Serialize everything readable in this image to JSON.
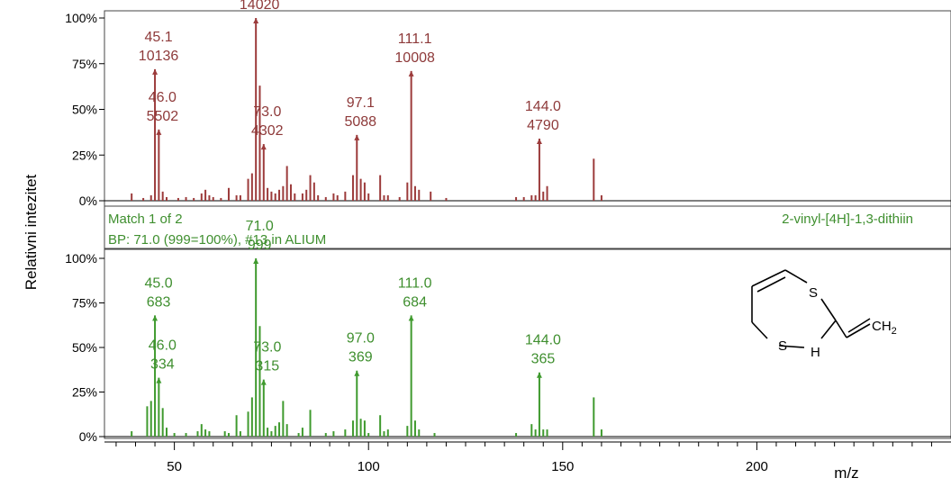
{
  "colors": {
    "library": "#9c3b3b",
    "library_label": "#8e3a3a",
    "match": "#3f9a2e",
    "match_label": "#3f8f2f",
    "axis": "#000000"
  },
  "y_axis_label": "Relativni intezitet",
  "x_axis_label": "m/z",
  "match_bar": {
    "match_text": "Match 1 of 2",
    "bp_text": "BP: 71.0 (999=100%),  #13 in ALIUM",
    "compound_name": "2-vinyl-[4H]-1,3-dithiin"
  },
  "structure": {
    "atom_s_top": "S",
    "atom_s_bottom": "S",
    "atom_h": "H",
    "group_ch2": "CH",
    "group_ch2_sub": "2"
  },
  "chart_data": [
    {
      "type": "bar",
      "name": "sample spectrum",
      "xlim": [
        32,
        250
      ],
      "ylim": [
        0,
        100
      ],
      "y_ticks": [
        "0%",
        "25%",
        "50%",
        "75%",
        "100%"
      ],
      "x_ticks": [],
      "peaks": [
        {
          "mz": 39,
          "rel": 4
        },
        {
          "mz": 42,
          "rel": 1.5
        },
        {
          "mz": 44,
          "rel": 3
        },
        {
          "mz": 45,
          "rel": 72
        },
        {
          "mz": 46,
          "rel": 39
        },
        {
          "mz": 47,
          "rel": 5
        },
        {
          "mz": 48,
          "rel": 2
        },
        {
          "mz": 51,
          "rel": 1.5
        },
        {
          "mz": 53,
          "rel": 2
        },
        {
          "mz": 55,
          "rel": 1.5
        },
        {
          "mz": 57,
          "rel": 4
        },
        {
          "mz": 58,
          "rel": 6
        },
        {
          "mz": 59,
          "rel": 3
        },
        {
          "mz": 60,
          "rel": 2
        },
        {
          "mz": 62,
          "rel": 1.5
        },
        {
          "mz": 64,
          "rel": 7
        },
        {
          "mz": 66,
          "rel": 3
        },
        {
          "mz": 67,
          "rel": 3
        },
        {
          "mz": 69,
          "rel": 12
        },
        {
          "mz": 70,
          "rel": 15
        },
        {
          "mz": 71,
          "rel": 100
        },
        {
          "mz": 72,
          "rel": 63
        },
        {
          "mz": 73,
          "rel": 31
        },
        {
          "mz": 74,
          "rel": 7
        },
        {
          "mz": 75,
          "rel": 5
        },
        {
          "mz": 76,
          "rel": 4
        },
        {
          "mz": 77,
          "rel": 6
        },
        {
          "mz": 78,
          "rel": 8
        },
        {
          "mz": 79,
          "rel": 19
        },
        {
          "mz": 80,
          "rel": 9
        },
        {
          "mz": 81,
          "rel": 4
        },
        {
          "mz": 83,
          "rel": 4
        },
        {
          "mz": 84,
          "rel": 6
        },
        {
          "mz": 85,
          "rel": 14
        },
        {
          "mz": 86,
          "rel": 10
        },
        {
          "mz": 87,
          "rel": 3
        },
        {
          "mz": 89,
          "rel": 2
        },
        {
          "mz": 91,
          "rel": 4
        },
        {
          "mz": 92,
          "rel": 3
        },
        {
          "mz": 94,
          "rel": 5
        },
        {
          "mz": 96,
          "rel": 14
        },
        {
          "mz": 97,
          "rel": 36
        },
        {
          "mz": 98,
          "rel": 12
        },
        {
          "mz": 99,
          "rel": 10
        },
        {
          "mz": 100,
          "rel": 4
        },
        {
          "mz": 103,
          "rel": 14
        },
        {
          "mz": 104,
          "rel": 3
        },
        {
          "mz": 105,
          "rel": 3
        },
        {
          "mz": 108,
          "rel": 2
        },
        {
          "mz": 110,
          "rel": 10
        },
        {
          "mz": 111,
          "rel": 71
        },
        {
          "mz": 112,
          "rel": 8
        },
        {
          "mz": 113,
          "rel": 6
        },
        {
          "mz": 116,
          "rel": 5
        },
        {
          "mz": 120,
          "rel": 1.5
        },
        {
          "mz": 138,
          "rel": 2
        },
        {
          "mz": 140,
          "rel": 2
        },
        {
          "mz": 142,
          "rel": 3
        },
        {
          "mz": 143,
          "rel": 3
        },
        {
          "mz": 144,
          "rel": 34
        },
        {
          "mz": 145,
          "rel": 5
        },
        {
          "mz": 146,
          "rel": 8
        },
        {
          "mz": 158,
          "rel": 23
        },
        {
          "mz": 160,
          "rel": 3
        }
      ],
      "annotations": [
        {
          "mz": 45,
          "rel": 72,
          "label": "45.1",
          "intensity": "10136"
        },
        {
          "mz": 46,
          "rel": 39,
          "label": "46.0",
          "intensity": "5502"
        },
        {
          "mz": 71,
          "rel": 100,
          "label": "71.2",
          "intensity": "14020"
        },
        {
          "mz": 73,
          "rel": 31,
          "label": "73.0",
          "intensity": "4302"
        },
        {
          "mz": 97,
          "rel": 36,
          "label": "97.1",
          "intensity": "5088"
        },
        {
          "mz": 111,
          "rel": 71,
          "label": "111.1",
          "intensity": "10008"
        },
        {
          "mz": 144,
          "rel": 34,
          "label": "144.0",
          "intensity": "4790"
        }
      ]
    },
    {
      "type": "bar",
      "name": "library spectrum",
      "xlim": [
        32,
        250
      ],
      "ylim": [
        0,
        100
      ],
      "y_ticks": [
        "0%",
        "25%",
        "50%",
        "75%",
        "100%"
      ],
      "x_ticks": [
        "50",
        "100",
        "150",
        "200"
      ],
      "x_tick_values": [
        50,
        100,
        150,
        200
      ],
      "peaks": [
        {
          "mz": 39,
          "rel": 3
        },
        {
          "mz": 43,
          "rel": 17
        },
        {
          "mz": 44,
          "rel": 20
        },
        {
          "mz": 45,
          "rel": 68
        },
        {
          "mz": 46,
          "rel": 33
        },
        {
          "mz": 47,
          "rel": 16
        },
        {
          "mz": 48,
          "rel": 5
        },
        {
          "mz": 50,
          "rel": 2
        },
        {
          "mz": 53,
          "rel": 2
        },
        {
          "mz": 56,
          "rel": 3
        },
        {
          "mz": 57,
          "rel": 7
        },
        {
          "mz": 58,
          "rel": 4
        },
        {
          "mz": 59,
          "rel": 3
        },
        {
          "mz": 63,
          "rel": 3
        },
        {
          "mz": 64,
          "rel": 2
        },
        {
          "mz": 66,
          "rel": 12
        },
        {
          "mz": 67,
          "rel": 3
        },
        {
          "mz": 69,
          "rel": 14
        },
        {
          "mz": 70,
          "rel": 22
        },
        {
          "mz": 71,
          "rel": 100
        },
        {
          "mz": 72,
          "rel": 62
        },
        {
          "mz": 73,
          "rel": 32
        },
        {
          "mz": 74,
          "rel": 5
        },
        {
          "mz": 75,
          "rel": 3
        },
        {
          "mz": 76,
          "rel": 6
        },
        {
          "mz": 77,
          "rel": 8
        },
        {
          "mz": 78,
          "rel": 20
        },
        {
          "mz": 79,
          "rel": 7
        },
        {
          "mz": 82,
          "rel": 2
        },
        {
          "mz": 83,
          "rel": 5
        },
        {
          "mz": 85,
          "rel": 15
        },
        {
          "mz": 89,
          "rel": 2
        },
        {
          "mz": 91,
          "rel": 3
        },
        {
          "mz": 94,
          "rel": 4
        },
        {
          "mz": 96,
          "rel": 9
        },
        {
          "mz": 97,
          "rel": 37
        },
        {
          "mz": 98,
          "rel": 10
        },
        {
          "mz": 99,
          "rel": 9
        },
        {
          "mz": 100,
          "rel": 2
        },
        {
          "mz": 103,
          "rel": 12
        },
        {
          "mz": 104,
          "rel": 3
        },
        {
          "mz": 105,
          "rel": 4
        },
        {
          "mz": 110,
          "rel": 6
        },
        {
          "mz": 111,
          "rel": 68
        },
        {
          "mz": 112,
          "rel": 9
        },
        {
          "mz": 113,
          "rel": 4
        },
        {
          "mz": 117,
          "rel": 2
        },
        {
          "mz": 138,
          "rel": 2
        },
        {
          "mz": 142,
          "rel": 7
        },
        {
          "mz": 143,
          "rel": 4
        },
        {
          "mz": 144,
          "rel": 36
        },
        {
          "mz": 145,
          "rel": 4
        },
        {
          "mz": 146,
          "rel": 4
        },
        {
          "mz": 158,
          "rel": 22
        },
        {
          "mz": 160,
          "rel": 4
        }
      ],
      "annotations": [
        {
          "mz": 45,
          "rel": 68,
          "label": "45.0",
          "intensity": "683"
        },
        {
          "mz": 46,
          "rel": 33,
          "label": "46.0",
          "intensity": "334"
        },
        {
          "mz": 71,
          "rel": 100,
          "label": "71.0",
          "intensity": "999"
        },
        {
          "mz": 73,
          "rel": 32,
          "label": "73.0",
          "intensity": "315"
        },
        {
          "mz": 97,
          "rel": 37,
          "label": "97.0",
          "intensity": "369"
        },
        {
          "mz": 111,
          "rel": 68,
          "label": "111.0",
          "intensity": "684"
        },
        {
          "mz": 144,
          "rel": 36,
          "label": "144.0",
          "intensity": "365"
        }
      ]
    }
  ]
}
